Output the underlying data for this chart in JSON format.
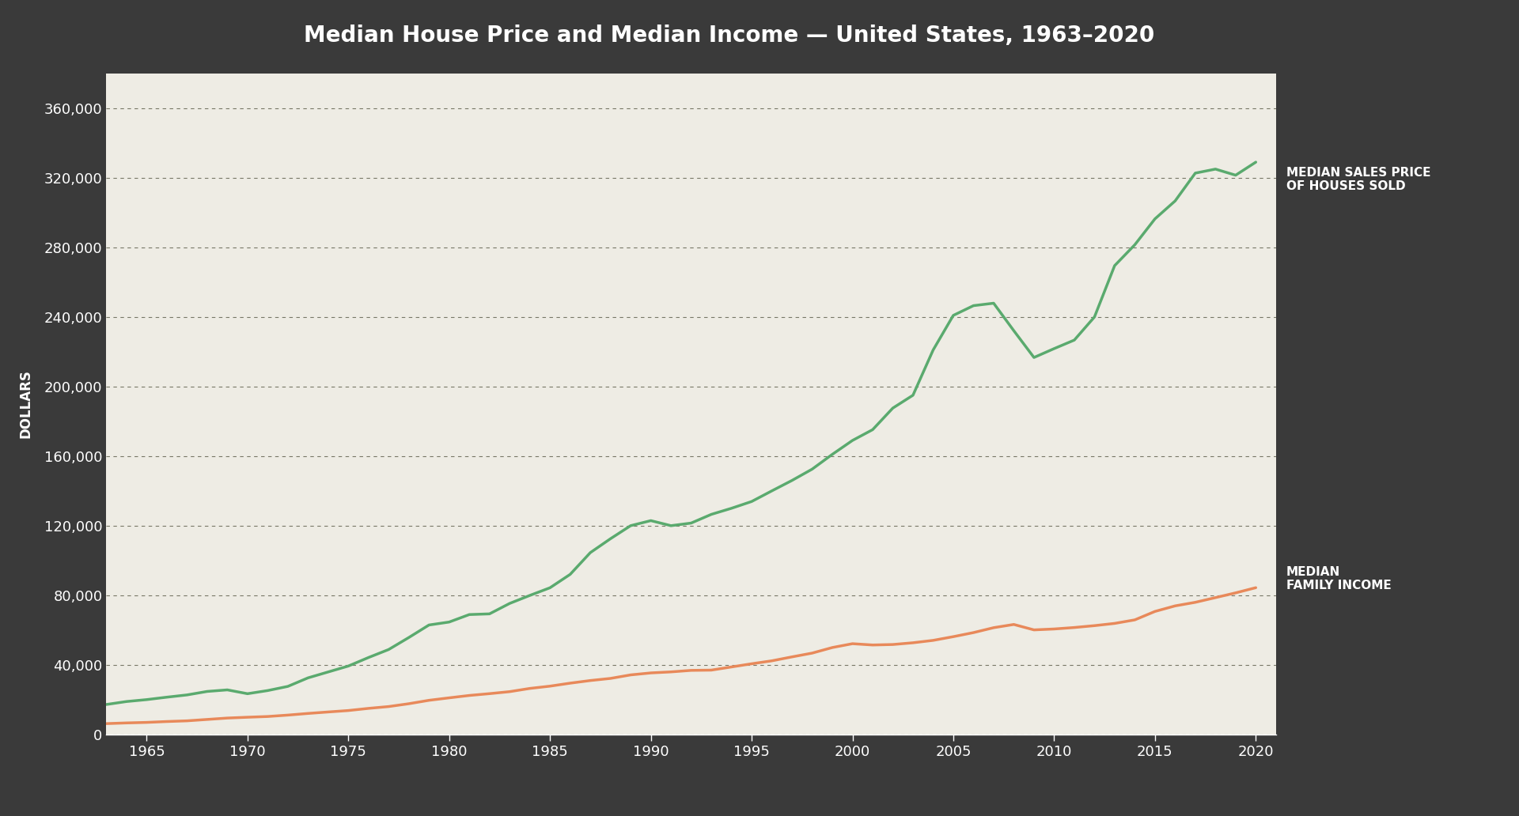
{
  "title": "Median House Price and Median Income — United States, 1963–2020",
  "background_color": "#3a3a3a",
  "plot_bg_color": "#eeece4",
  "title_color": "#ffffff",
  "ylabel": "DOLLARS",
  "ylabel_color": "#ffffff",
  "xlabel_color": "#ffffff",
  "tick_color": "#ffffff",
  "grid_color": "#555555",
  "ylim": [
    0,
    380000
  ],
  "yticks": [
    0,
    40000,
    80000,
    120000,
    160000,
    200000,
    240000,
    280000,
    320000,
    360000
  ],
  "xticks": [
    1965,
    1970,
    1975,
    1980,
    1985,
    1990,
    1995,
    2000,
    2005,
    2010,
    2015,
    2020
  ],
  "house_color": "#5aaa6e",
  "income_color": "#e8895a",
  "house_label": "MEDIAN SALES PRICE\nOF HOUSES SOLD",
  "income_label": "MEDIAN\nFAMILY INCOME",
  "house_years": [
    1963,
    1964,
    1965,
    1966,
    1967,
    1968,
    1969,
    1970,
    1971,
    1972,
    1973,
    1974,
    1975,
    1976,
    1977,
    1978,
    1979,
    1980,
    1981,
    1982,
    1983,
    1984,
    1985,
    1986,
    1987,
    1988,
    1989,
    1990,
    1991,
    1992,
    1993,
    1994,
    1995,
    1996,
    1997,
    1998,
    1999,
    2000,
    2001,
    2002,
    2003,
    2004,
    2005,
    2006,
    2007,
    2008,
    2009,
    2010,
    2011,
    2012,
    2013,
    2014,
    2015,
    2016,
    2017,
    2018,
    2019,
    2020
  ],
  "house_prices": [
    17200,
    18900,
    20000,
    21400,
    22700,
    24700,
    25600,
    23400,
    25200,
    27600,
    32500,
    35900,
    39300,
    44200,
    48800,
    55700,
    62900,
    64600,
    68900,
    69300,
    75300,
    79900,
    84300,
    92000,
    104500,
    112500,
    120000,
    122900,
    120000,
    121500,
    126500,
    130000,
    133900,
    140000,
    146000,
    152500,
    161000,
    169000,
    175200,
    187600,
    195000,
    221000,
    240900,
    246500,
    247900,
    232100,
    216700,
    221800,
    226700,
    240000,
    269500,
    281500,
    296400,
    306700,
    322700,
    325000,
    321500,
    329000
  ],
  "income_years": [
    1963,
    1964,
    1965,
    1966,
    1967,
    1968,
    1969,
    1970,
    1971,
    1972,
    1973,
    1974,
    1975,
    1976,
    1977,
    1978,
    1979,
    1980,
    1981,
    1982,
    1983,
    1984,
    1985,
    1986,
    1987,
    1988,
    1989,
    1990,
    1991,
    1992,
    1993,
    1994,
    1995,
    1996,
    1997,
    1998,
    1999,
    2000,
    2001,
    2002,
    2003,
    2004,
    2005,
    2006,
    2007,
    2008,
    2009,
    2010,
    2011,
    2012,
    2013,
    2014,
    2015,
    2016,
    2017,
    2018,
    2019,
    2020
  ],
  "income_values": [
    6200,
    6600,
    6900,
    7400,
    7800,
    8600,
    9400,
    9870,
    10290,
    11100,
    12050,
    12900,
    13720,
    14960,
    16010,
    17640,
    19600,
    21020,
    22390,
    23430,
    24580,
    26430,
    27740,
    29460,
    30970,
    32190,
    34213,
    35353,
    35939,
    36812,
    36959,
    38782,
    40611,
    42300,
    44568,
    46737,
    49940,
    52148,
    51407,
    51680,
    52680,
    54061,
    56194,
    58526,
    61355,
    63211,
    60088,
    60609,
    61455,
    62527,
    63815,
    65844,
    70697,
    73891,
    75938,
    78646,
    81370,
    84352
  ]
}
